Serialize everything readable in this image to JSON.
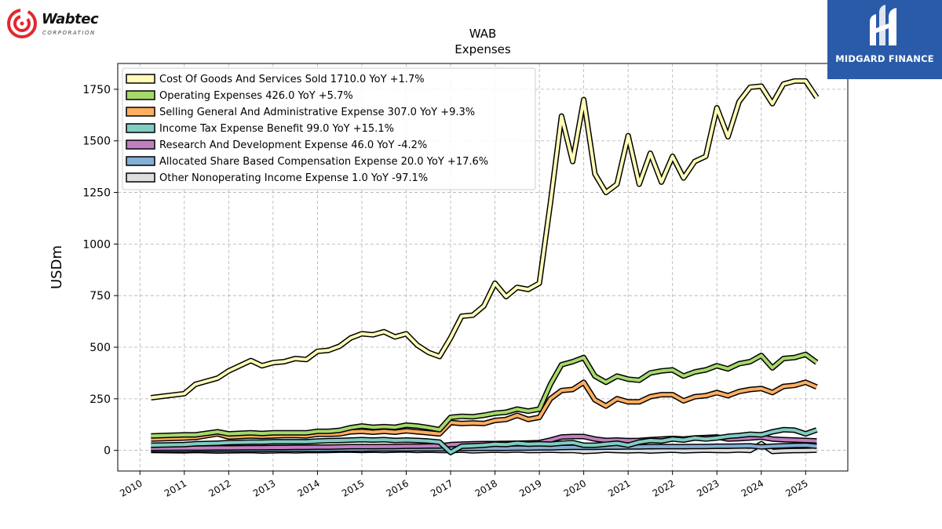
{
  "logos": {
    "left_name": "Wabtec",
    "left_sub": "CORPORATION",
    "right_name": "MIDGARD FINANCE"
  },
  "chart_data": {
    "type": "line",
    "title": "WAB",
    "subtitle": "Expenses",
    "xlabel": "",
    "ylabel": "USDm",
    "ylim": [
      -100,
      1875
    ],
    "xlim": [
      2009.5,
      2025.95
    ],
    "yticks": [
      0,
      250,
      500,
      750,
      1000,
      1250,
      1500,
      1750
    ],
    "xticks": [
      2010,
      2011,
      2012,
      2013,
      2014,
      2015,
      2016,
      2017,
      2018,
      2019,
      2020,
      2021,
      2022,
      2023,
      2024,
      2025
    ],
    "grid": true,
    "legend_position": "top-left",
    "x": [
      2010.25,
      2011.0,
      2011.25,
      2011.75,
      2012.0,
      2012.5,
      2012.75,
      2013.0,
      2013.25,
      2013.5,
      2013.75,
      2014.0,
      2014.25,
      2014.5,
      2014.75,
      2015.0,
      2015.25,
      2015.5,
      2015.75,
      2016.0,
      2016.25,
      2016.5,
      2016.75,
      2017.0,
      2017.25,
      2017.5,
      2017.75,
      2018.0,
      2018.25,
      2018.5,
      2018.75,
      2019.0,
      2019.25,
      2019.5,
      2019.75,
      2020.0,
      2020.25,
      2020.5,
      2020.75,
      2021.0,
      2021.25,
      2021.5,
      2021.75,
      2022.0,
      2022.25,
      2022.5,
      2022.75,
      2023.0,
      2023.25,
      2023.5,
      2023.75,
      2024.0,
      2024.25,
      2024.5,
      2024.75,
      2025.0,
      2025.25
    ],
    "series": [
      {
        "name": "Cost Of Goods And Services Sold  1710.0 YoY +1.7%",
        "color": "#fffdb8",
        "values": [
          255,
          275,
          320,
          350,
          385,
          435,
          410,
          425,
          430,
          445,
          440,
          480,
          485,
          505,
          545,
          565,
          560,
          575,
          550,
          565,
          510,
          475,
          455,
          545,
          650,
          655,
          700,
          810,
          745,
          790,
          780,
          810,
          1200,
          1620,
          1400,
          1700,
          1340,
          1250,
          1290,
          1525,
          1290,
          1440,
          1300,
          1425,
          1320,
          1400,
          1425,
          1660,
          1520,
          1690,
          1760,
          1765,
          1680,
          1775,
          1790,
          1790,
          1710
        ]
      },
      {
        "name": "Operating Expenses  426.0 YoY +5.7%",
        "color": "#a6d96a",
        "values": [
          70,
          75,
          75,
          90,
          80,
          85,
          82,
          85,
          85,
          85,
          85,
          92,
          92,
          97,
          110,
          118,
          112,
          115,
          112,
          122,
          118,
          110,
          100,
          160,
          165,
          163,
          170,
          180,
          185,
          200,
          190,
          200,
          320,
          415,
          430,
          450,
          360,
          330,
          360,
          345,
          340,
          375,
          385,
          390,
          360,
          380,
          390,
          410,
          395,
          420,
          430,
          460,
          400,
          445,
          450,
          465,
          426
        ]
      },
      {
        "name": "Selling General And Administrative Expense  307.0 YoY +9.3%",
        "color": "#fdae61",
        "values": [
          55,
          60,
          62,
          80,
          65,
          70,
          68,
          70,
          72,
          72,
          70,
          78,
          78,
          80,
          90,
          92,
          88,
          92,
          88,
          95,
          90,
          85,
          80,
          135,
          130,
          133,
          130,
          145,
          150,
          170,
          150,
          160,
          250,
          290,
          295,
          330,
          245,
          215,
          250,
          235,
          235,
          260,
          270,
          270,
          240,
          260,
          265,
          280,
          265,
          285,
          295,
          300,
          280,
          310,
          315,
          330,
          307
        ]
      },
      {
        "name": "Income Tax Expense Benefit  99.0 YoY +15.1%",
        "color": "#80cdc1",
        "values": [
          25,
          28,
          32,
          35,
          38,
          40,
          40,
          42,
          42,
          42,
          42,
          45,
          47,
          48,
          50,
          52,
          50,
          52,
          48,
          50,
          48,
          45,
          40,
          -10,
          20,
          22,
          25,
          30,
          28,
          35,
          30,
          32,
          30,
          35,
          38,
          25,
          25,
          30,
          35,
          25,
          40,
          48,
          45,
          55,
          50,
          60,
          55,
          60,
          68,
          72,
          78,
          75,
          90,
          100,
          98,
          80,
          99
        ]
      },
      {
        "name": "Research And Development Expense  46.0 YoY -4.2%",
        "color": "#c17fc0",
        "values": [
          10,
          11,
          11,
          12,
          12,
          13,
          13,
          14,
          14,
          15,
          15,
          16,
          16,
          17,
          18,
          18,
          18,
          19,
          19,
          20,
          20,
          21,
          21,
          28,
          30,
          32,
          33,
          33,
          34,
          35,
          36,
          38,
          50,
          65,
          67,
          67,
          55,
          48,
          50,
          47,
          48,
          52,
          55,
          58,
          55,
          60,
          62,
          65,
          55,
          57,
          60,
          64,
          55,
          52,
          50,
          48,
          46
        ]
      },
      {
        "name": "Allocated Share Based Compensation Expense  20.0 YoY +17.6%",
        "color": "#84aed4",
        "values": [
          3,
          3,
          4,
          4,
          4,
          4,
          4,
          5,
          5,
          5,
          5,
          5,
          6,
          6,
          6,
          6,
          7,
          7,
          7,
          7,
          8,
          8,
          8,
          8,
          9,
          9,
          10,
          10,
          10,
          11,
          11,
          12,
          12,
          14,
          15,
          15,
          15,
          16,
          16,
          17,
          17,
          18,
          18,
          18,
          18,
          19,
          19,
          20,
          20,
          21,
          22,
          17,
          20,
          22,
          24,
          25,
          20
        ]
      },
      {
        "name": "Other Nonoperating Income Expense  1.0 YoY -97.1%",
        "color": "#dedede",
        "values": [
          0,
          -2,
          0,
          -3,
          -2,
          -1,
          -3,
          -2,
          -1,
          -2,
          -1,
          -1,
          0,
          1,
          1,
          0,
          1,
          0,
          1,
          2,
          0,
          1,
          0,
          -1,
          1,
          -2,
          0,
          1,
          0,
          2,
          -1,
          0,
          1,
          -1,
          0,
          -5,
          -3,
          1,
          -1,
          -2,
          0,
          -3,
          -1,
          1,
          -2,
          0,
          1,
          0,
          -1,
          2,
          0,
          32,
          -5,
          -2,
          -1,
          0,
          1
        ]
      }
    ]
  }
}
